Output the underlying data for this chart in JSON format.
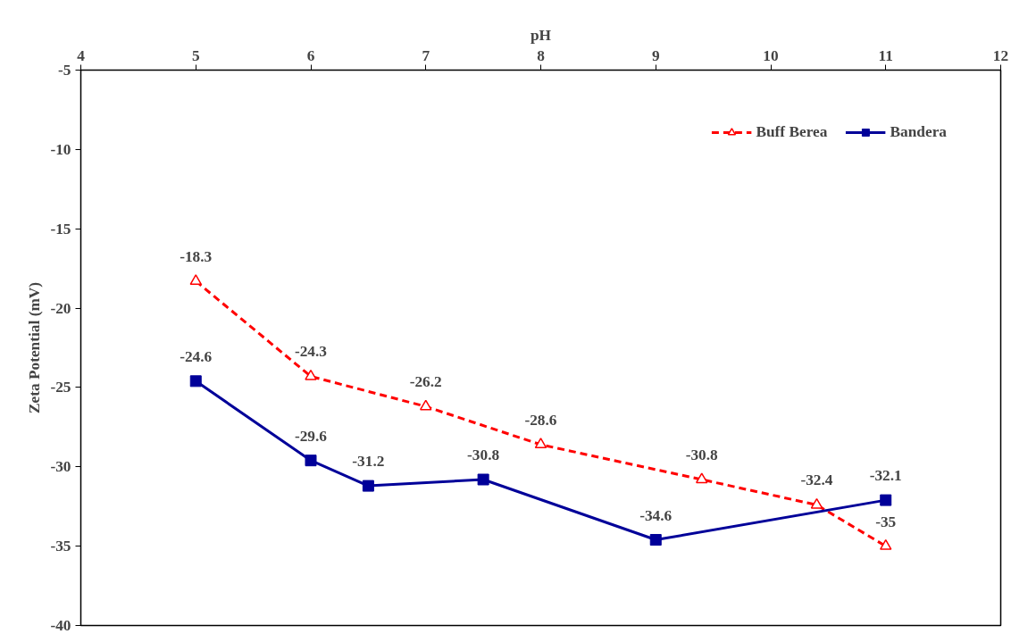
{
  "chart_data": {
    "type": "line",
    "xlabel": "pH",
    "ylabel": "Zeta Potential (mV)",
    "xlim": [
      4,
      12
    ],
    "xticks": [
      4,
      5,
      6,
      7,
      8,
      9,
      10,
      11,
      12
    ],
    "ylim": [
      -40,
      -5
    ],
    "yticks": [
      -40,
      -35,
      -30,
      -25,
      -20,
      -15,
      -10,
      -5
    ],
    "grid": false,
    "legend": "top right",
    "data_labels": true,
    "series": [
      {
        "name": "Buff Berea",
        "color": "#ff0000",
        "marker": "triangle",
        "line_style": "dashed",
        "x": [
          5,
          6,
          7,
          8,
          9.4,
          10.4,
          11
        ],
        "values": [
          -18.3,
          -24.3,
          -26.2,
          -28.6,
          -30.8,
          -32.4,
          -35
        ]
      },
      {
        "name": "Bandera",
        "color": "#000099",
        "marker": "square",
        "line_style": "solid",
        "x": [
          5,
          6,
          6.5,
          7.5,
          9,
          11
        ],
        "values": [
          -24.6,
          -29.6,
          -31.2,
          -30.8,
          -34.6,
          -32.1
        ]
      }
    ]
  }
}
